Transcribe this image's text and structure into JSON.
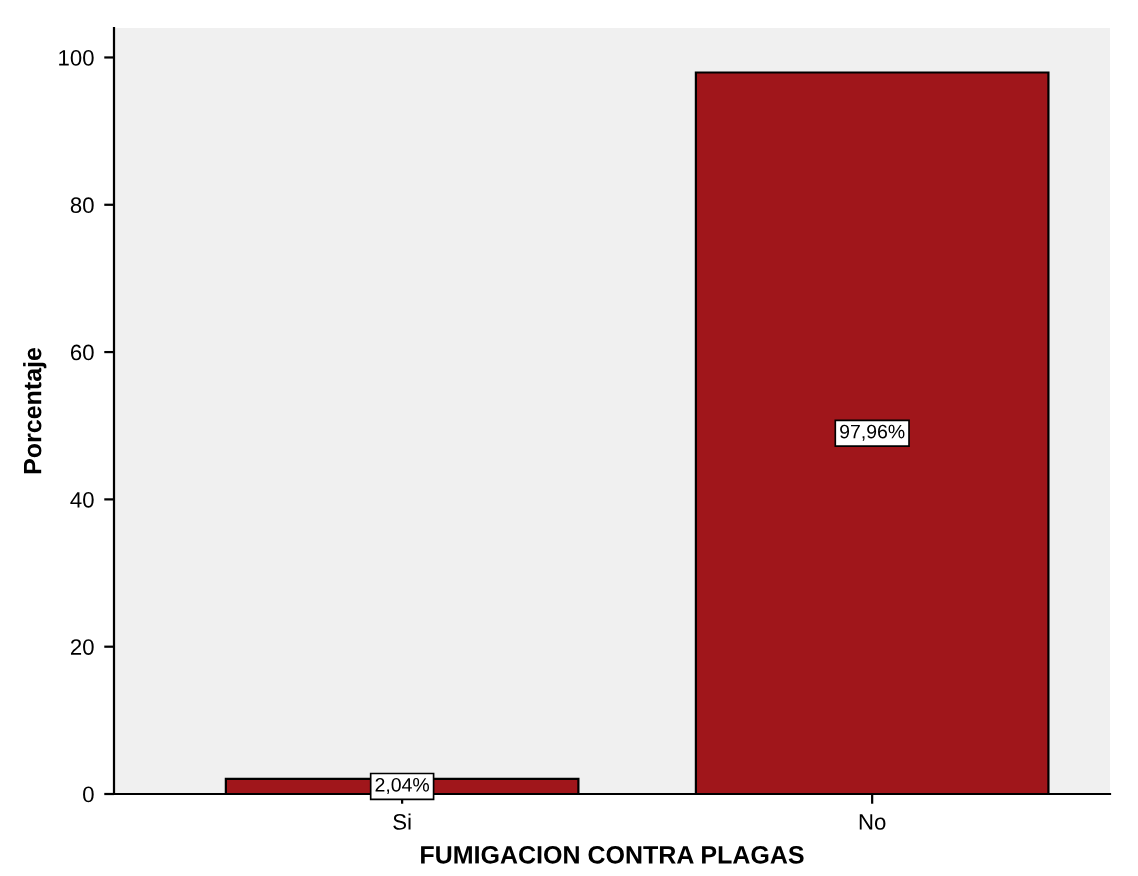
{
  "chart_data": {
    "type": "bar",
    "xlabel": "FUMIGACION CONTRA PLAGAS",
    "ylabel": "Porcentaje",
    "categories": [
      "Si",
      "No"
    ],
    "values": [
      2.04,
      97.96
    ],
    "value_labels": [
      "2,04%",
      "97,96%"
    ],
    "color": "#a0161b",
    "ylim": [
      0,
      104
    ],
    "yticks": [
      0,
      20,
      40,
      60,
      80,
      100
    ],
    "grid": false,
    "legend": false
  }
}
